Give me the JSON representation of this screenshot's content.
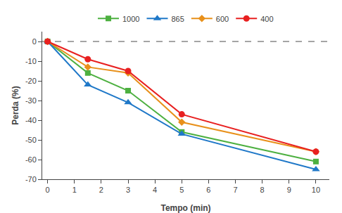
{
  "chart_data": {
    "type": "line",
    "x": [
      0,
      1.5,
      3,
      5,
      10
    ],
    "series": [
      {
        "name": "1000",
        "color": "#4db040",
        "marker": "square",
        "values": [
          0,
          -16,
          -25,
          -46,
          -61
        ]
      },
      {
        "name": "865",
        "color": "#1f78c8",
        "marker": "triangle",
        "values": [
          0,
          -22,
          -31,
          -47,
          -65
        ]
      },
      {
        "name": "600",
        "color": "#e8901a",
        "marker": "diamond",
        "values": [
          0,
          -13,
          -16,
          -41,
          -56
        ]
      },
      {
        "name": "400",
        "color": "#e82020",
        "marker": "circle",
        "values": [
          0,
          -9,
          -15,
          -37,
          -56
        ]
      }
    ],
    "xlabel": "Tempo (min)",
    "ylabel": "Perda (%)",
    "xlim": [
      -0.2,
      10.5
    ],
    "ylim": [
      -70,
      5
    ],
    "xticks": [
      0,
      1,
      2,
      3,
      4,
      5,
      6,
      7,
      8,
      9,
      10
    ],
    "yticks": [
      0,
      -10,
      -20,
      -30,
      -40,
      -50,
      -60,
      -70
    ],
    "reference_line": {
      "y": 0,
      "line_style": "dashed",
      "color": "#888888"
    },
    "legend": "top",
    "grid": false
  }
}
